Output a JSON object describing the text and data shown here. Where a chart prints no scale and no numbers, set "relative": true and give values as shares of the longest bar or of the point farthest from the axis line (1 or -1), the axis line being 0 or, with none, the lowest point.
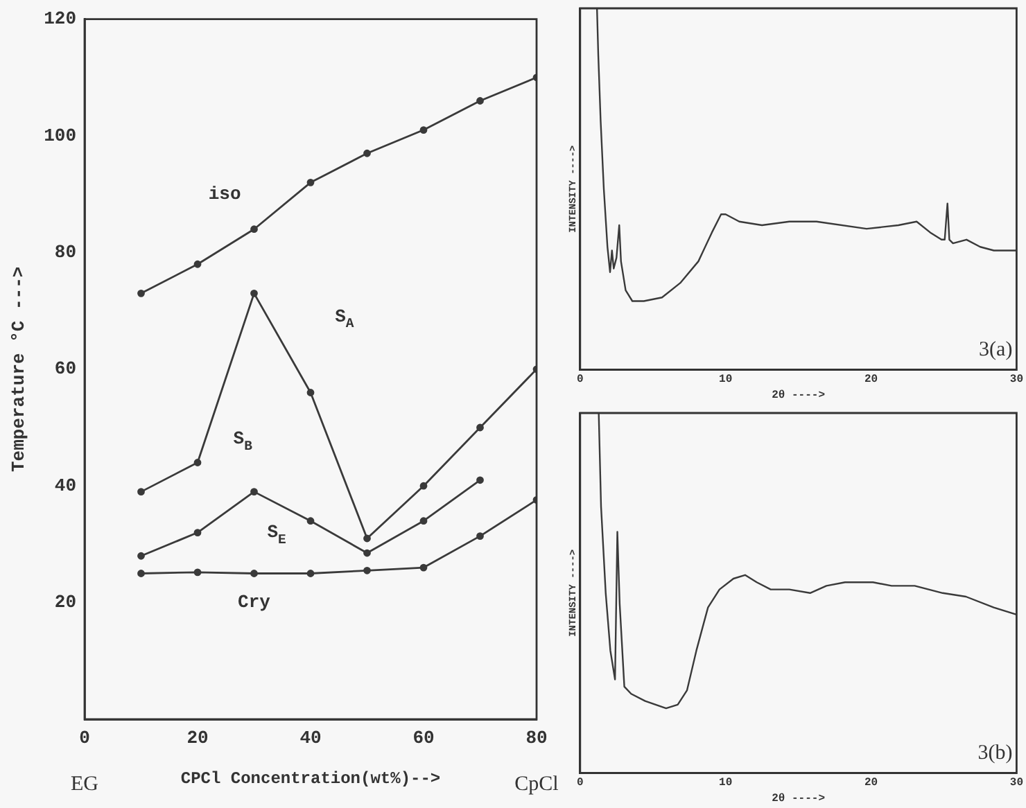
{
  "chart_data": [
    {
      "type": "line",
      "xlabel": "CPCl Concentration(wt%)-->",
      "ylabel": "Temperature °C --->",
      "x": [
        10,
        20,
        30,
        40,
        50,
        60,
        70,
        80
      ],
      "xlim": [
        0,
        80
      ],
      "xticks": [
        0,
        20,
        40,
        60,
        80
      ],
      "ylim": [
        0,
        120
      ],
      "yticks": [
        20,
        40,
        60,
        80,
        100,
        120
      ],
      "grid": false,
      "marker": "circle",
      "series": [
        {
          "color": "#3a3a3a",
          "values": [
            73,
            78,
            84,
            92,
            97,
            101,
            106,
            110
          ]
        },
        {
          "color": "#3a3a3a",
          "values": [
            39,
            44,
            73,
            56,
            31,
            40,
            50,
            60
          ]
        },
        {
          "color": "#3a3a3a",
          "values": [
            28,
            32,
            39,
            34,
            28.5,
            34,
            41,
            null
          ]
        },
        {
          "color": "#3a3a3a",
          "values": [
            25,
            25.2,
            25,
            25,
            25.5,
            26,
            31.4,
            37.6
          ]
        }
      ],
      "annotations": [
        "iso",
        "S$_{A}$",
        "S$_{B}$",
        "S$_{E}$",
        "Cry",
        "EG",
        "CpCl"
      ]
    },
    {
      "type": "line",
      "xlabel": "2θ ---->",
      "ylabel": "INTENSITY ---->",
      "relative": true,
      "xlim": [
        0,
        30
      ],
      "xticks": [
        0,
        10,
        20,
        30
      ],
      "tick_labels": "x",
      "grid": false,
      "marker": "none",
      "annotations": [
        "3(a)"
      ],
      "series": [
        {
          "color": "#3a3a3a",
          "x": [
            1.16,
            1.25,
            1.41,
            1.63,
            1.88,
            2.06,
            2.19,
            2.31,
            2.5,
            2.69,
            2.81,
            3.13,
            3.59,
            4.38,
            5.63,
            6.88,
            8.13,
            9.06,
            9.69,
            10.0,
            10.47,
            10.94,
            12.5,
            14.38,
            16.25,
            19.69,
            21.88,
            23.13,
            24.06,
            24.84,
            25.06,
            25.25,
            25.38,
            25.63,
            26.56,
            27.5,
            28.44,
            30
          ],
          "values": [
            1,
            0.87,
            0.69,
            0.5,
            0.34,
            0.27,
            0.33,
            0.28,
            0.31,
            0.4,
            0.3,
            0.22,
            0.19,
            0.19,
            0.2,
            0.24,
            0.3,
            0.38,
            0.43,
            0.43,
            0.42,
            0.41,
            0.4,
            0.41,
            0.41,
            0.39,
            0.4,
            0.41,
            0.38,
            0.36,
            0.36,
            0.46,
            0.36,
            0.35,
            0.36,
            0.34,
            0.33,
            0.33
          ]
        }
      ]
    },
    {
      "type": "line",
      "xlabel": "2θ ---->",
      "ylabel": "INTENSITY ---->",
      "relative": true,
      "xlim": [
        0,
        30
      ],
      "xticks": [
        0,
        10,
        20,
        30
      ],
      "tick_labels": "x",
      "grid": false,
      "marker": "none",
      "annotations": [
        "3(b)"
      ],
      "series": [
        {
          "color": "#3a3a3a",
          "x": [
            1.28,
            1.44,
            1.76,
            2.08,
            2.4,
            2.56,
            2.72,
            3.04,
            3.51,
            4.47,
            5.91,
            6.71,
            7.35,
            7.99,
            8.79,
            9.58,
            10.54,
            11.34,
            12.14,
            13.1,
            14.38,
            15.81,
            16.93,
            18.21,
            20.13,
            21.41,
            23.0,
            24.92,
            26.52,
            28.43,
            30
          ],
          "values": [
            1,
            0.74,
            0.5,
            0.34,
            0.26,
            0.67,
            0.47,
            0.24,
            0.22,
            0.2,
            0.18,
            0.19,
            0.23,
            0.34,
            0.46,
            0.51,
            0.54,
            0.55,
            0.53,
            0.51,
            0.51,
            0.5,
            0.52,
            0.53,
            0.53,
            0.52,
            0.52,
            0.5,
            0.49,
            0.46,
            0.44
          ]
        }
      ]
    }
  ]
}
